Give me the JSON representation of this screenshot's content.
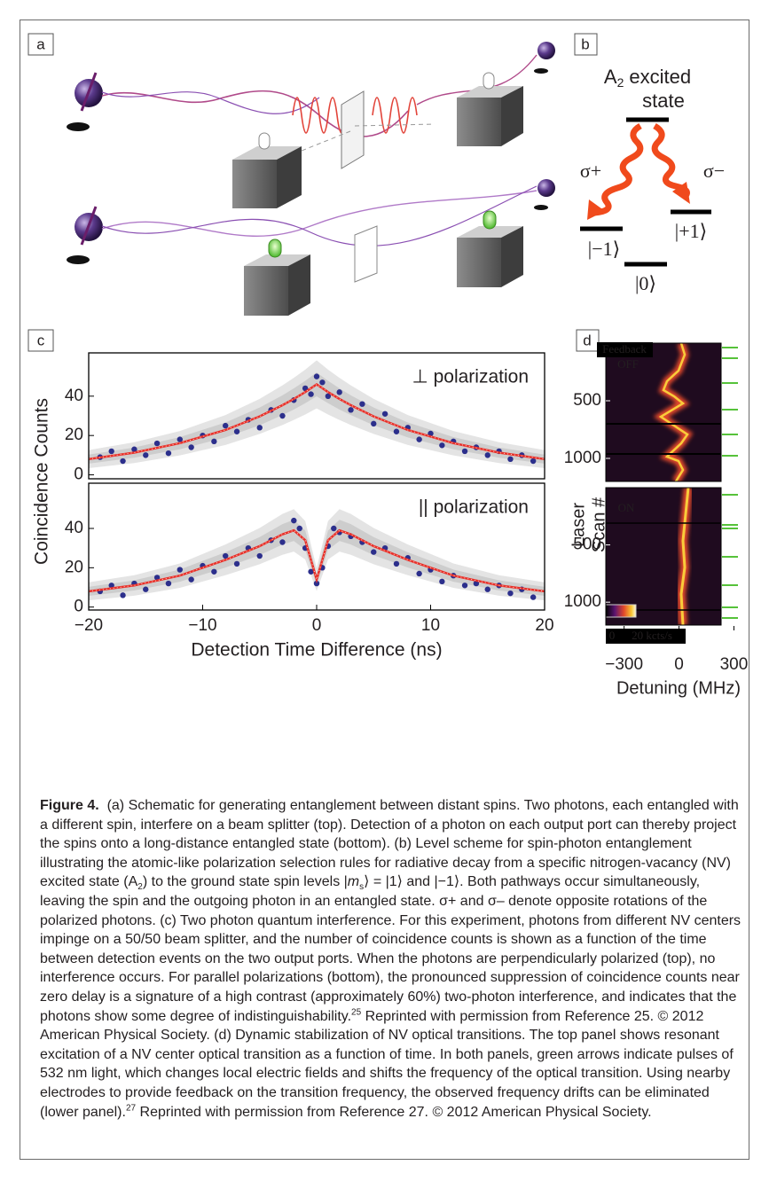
{
  "panel_labels": [
    "a",
    "b",
    "c",
    "d"
  ],
  "panel_b": {
    "title": {
      "main": "A",
      "sub": "2",
      "rest": "excited",
      "line2": "state"
    },
    "sigma_plus": "σ+",
    "sigma_minus": "σ−",
    "levels": [
      "|−1⟩",
      "|+1⟩",
      "|0⟩"
    ]
  },
  "chart_data": [
    {
      "type": "scatter",
      "annotation": "⊥ polarization",
      "ylabel": "Coincidence Counts",
      "xlim": [
        -20,
        20
      ],
      "ylim": [
        -2,
        62
      ],
      "yticks": [
        0,
        20,
        40
      ],
      "bands": [
        {
          "color": "#e4e4e4",
          "x": [
            -20,
            -16,
            -12,
            -8,
            -5,
            -3,
            -2,
            -1,
            0,
            1,
            2,
            3,
            5,
            8,
            12,
            16,
            20
          ],
          "lower": [
            3.4,
            6,
            9.9,
            15.2,
            20.8,
            25.3,
            27.9,
            30.7,
            33.8,
            30.7,
            27.9,
            25.3,
            20.8,
            15.2,
            9.9,
            6,
            3.4
          ],
          "upper": [
            12.6,
            16.6,
            22.3,
            30.4,
            38.6,
            45.5,
            49.3,
            53.5,
            58.2,
            53.5,
            49.3,
            45.5,
            38.6,
            30.4,
            22.3,
            16.6,
            12.6
          ]
        },
        {
          "color": "#cdcdcd",
          "x": [
            -20,
            -16,
            -12,
            -8,
            -5,
            -3,
            -2,
            -1,
            0,
            1,
            2,
            3,
            5,
            8,
            12,
            16,
            20
          ],
          "lower": [
            5.7,
            8.7,
            13,
            19,
            25.2,
            30.4,
            33.2,
            36.4,
            39.9,
            36.4,
            33.2,
            30.4,
            25.2,
            19,
            13,
            8.7,
            5.7
          ],
          "upper": [
            10.3,
            13.9,
            19.2,
            26.6,
            34.2,
            40.4,
            44,
            47.8,
            52.1,
            47.8,
            44,
            40.4,
            34.2,
            26.6,
            19.2,
            13.9,
            10.3
          ]
        }
      ],
      "series": [
        {
          "type": "scatter",
          "color": "#2c2f8c",
          "x": [
            -19,
            -18,
            -17,
            -16,
            -15,
            -14,
            -13,
            -12,
            -11,
            -10,
            -9,
            -8,
            -7,
            -6,
            -5,
            -4,
            -3,
            -2,
            -1,
            -0.5,
            0,
            0.5,
            1,
            2,
            3,
            4,
            5,
            6,
            7,
            8,
            9,
            10,
            11,
            12,
            13,
            14,
            15,
            16,
            17,
            18,
            19
          ],
          "values": [
            9,
            12,
            7,
            13,
            10,
            16,
            11,
            18,
            14,
            20,
            17,
            25,
            22,
            28,
            24,
            33,
            30,
            38,
            44,
            41,
            50,
            47,
            40,
            42,
            33,
            36,
            26,
            31,
            22,
            24,
            18,
            21,
            15,
            17,
            12,
            14,
            10,
            12,
            8,
            10,
            7
          ]
        },
        {
          "type": "line",
          "color": "#e8312a",
          "x": [
            -20,
            -16,
            -12,
            -8,
            -5,
            -3,
            -2,
            -1,
            0,
            1,
            2,
            3,
            5,
            8,
            12,
            16,
            20
          ],
          "values": [
            8,
            11.3,
            16.1,
            22.8,
            29.7,
            35.4,
            38.6,
            42.1,
            46,
            42.1,
            38.6,
            35.4,
            29.7,
            22.8,
            16.1,
            11.3,
            8
          ]
        }
      ]
    },
    {
      "type": "scatter",
      "annotation": "|| polarization",
      "xlabel": "Detection Time Difference (ns)",
      "xlim": [
        -20,
        20
      ],
      "ylim": [
        -1.5,
        63
      ],
      "yticks": [
        0,
        20,
        40
      ],
      "xticks": [
        {
          "value": -20,
          "label": "−20"
        },
        {
          "value": -10,
          "label": "−10"
        },
        0,
        10,
        20
      ],
      "bands": [
        {
          "color": "#e4e4e4",
          "x": [
            -20,
            -16,
            -12,
            -8,
            -5,
            -3,
            -2,
            -1,
            0,
            1,
            2,
            3,
            5,
            8,
            12,
            16,
            20
          ],
          "lower": [
            3.4,
            5.8,
            9.8,
            16.2,
            21.8,
            26.6,
            28.2,
            24.2,
            8.2,
            24.2,
            28.2,
            26.6,
            21.8,
            16.2,
            9.8,
            5.8,
            3.4
          ],
          "upper": [
            12.6,
            16.2,
            22.2,
            31.8,
            40.2,
            47.4,
            49.8,
            43.8,
            19.8,
            43.8,
            49.8,
            47.4,
            40.2,
            31.8,
            22.2,
            16.2,
            12.6
          ]
        },
        {
          "color": "#cdcdcd",
          "x": [
            -20,
            -16,
            -12,
            -8,
            -5,
            -3,
            -2,
            -1,
            0,
            1,
            2,
            3,
            5,
            8,
            12,
            16,
            20
          ],
          "lower": [
            5.7,
            8.4,
            12.9,
            20.1,
            26.4,
            31.8,
            33.6,
            29.1,
            11.1,
            29.1,
            33.6,
            31.8,
            26.4,
            20.1,
            12.9,
            8.4,
            5.7
          ],
          "upper": [
            10.3,
            13.6,
            19.1,
            27.9,
            35.6,
            42.2,
            44.4,
            38.9,
            16.9,
            38.9,
            44.4,
            42.2,
            35.6,
            27.9,
            19.1,
            13.6,
            10.3
          ]
        }
      ],
      "series": [
        {
          "type": "scatter",
          "color": "#2c2f8c",
          "x": [
            -19,
            -18,
            -17,
            -16,
            -15,
            -14,
            -13,
            -12,
            -11,
            -10,
            -9,
            -8,
            -7,
            -6,
            -5,
            -4,
            -3,
            -2,
            -1.5,
            -1,
            -0.5,
            0,
            0.5,
            1,
            1.5,
            2,
            3,
            4,
            5,
            6,
            7,
            8,
            9,
            10,
            11,
            12,
            13,
            14,
            15,
            16,
            17,
            18,
            19
          ],
          "values": [
            8,
            11,
            6,
            12,
            9,
            15,
            12,
            19,
            14,
            21,
            18,
            26,
            22,
            30,
            26,
            34,
            33,
            44,
            40,
            30,
            18,
            12,
            20,
            31,
            40,
            38,
            36,
            33,
            28,
            30,
            22,
            25,
            17,
            19,
            13,
            16,
            11,
            12,
            9,
            11,
            7,
            9,
            5
          ]
        },
        {
          "type": "line",
          "color": "#e8312a",
          "x": [
            -20,
            -16,
            -12,
            -8,
            -5,
            -3,
            -2,
            -1,
            0,
            1,
            2,
            3,
            5,
            8,
            12,
            16,
            20
          ],
          "values": [
            8,
            11,
            16,
            24,
            31,
            37,
            39,
            34,
            14,
            34,
            39,
            37,
            31,
            24,
            16,
            11,
            8
          ]
        }
      ]
    },
    {
      "type": "heatmap",
      "annotation": [
        "Feedback",
        "OFF"
      ],
      "ylabel": [
        "Laser",
        "Scan #"
      ],
      "ylim": [
        0,
        1200
      ],
      "yticks": [
        500,
        1000
      ]
    },
    {
      "type": "heatmap",
      "annotation": [
        "ON"
      ],
      "xlabel": "Detuning (MHz)",
      "xlim": [
        -400,
        230
      ],
      "xticks": [
        {
          "value": -300,
          "label": "−300"
        },
        0,
        300
      ],
      "ylim": [
        0,
        1200
      ],
      "yticks": [
        500,
        1000
      ],
      "colorbar": [
        "0",
        "20 kcts/s"
      ]
    }
  ],
  "caption": {
    "label": "Figure 4.",
    "parts": [
      "(a) Schematic for generating entanglement between distant spins. Two photons, each entangled with a different spin, interfere on a beam splitter (top). Detection of a photon on each output port can thereby project the spins onto a long-distance entangled state (bottom). (b) Level scheme for spin-photon entanglement illustrating the atomic-like polarization selection rules for radiative decay from a specific nitrogen-vacancy (NV) excited state (A",
      "2",
      ") to the ground state spin levels |",
      "m",
      "s",
      "⟩ = |1⟩ and |−1⟩. Both pathways occur simultaneously, leaving the spin and the outgoing photon in an entangled state. σ+ and σ– denote opposite rotations of the polarized photons. (c) Two photon quantum interference. For this experiment, photons from different NV centers impinge on a 50/50 beam splitter, and the number of coincidence counts is shown as a function of the time between detection events on the two output ports. When the photons are perpendicularly polarized (top), no interference occurs. For parallel polarizations (bottom), the pronounced suppression of coincidence counts near zero delay is a signature of a high contrast (approximately 60%) two-photon interference, and indicates that the photons show some degree of indistinguishability.",
      "25",
      "Reprinted with permission from Reference 25. © 2012 American Physical Society. (d) Dynamic stabilization of NV optical transitions. The top panel shows resonant excitation of a NV center optical transition as a function of time. In both panels, green arrows indicate pulses of 532 nm light, which changes local electric fields and shifts the frequency of the optical transition. Using nearby electrodes to provide feedback on the transition frequency, the observed frequency drifts can be eliminated (lower panel).",
      "27",
      "Reprinted with permission from Reference 27. © 2012 American Physical Society."
    ]
  }
}
